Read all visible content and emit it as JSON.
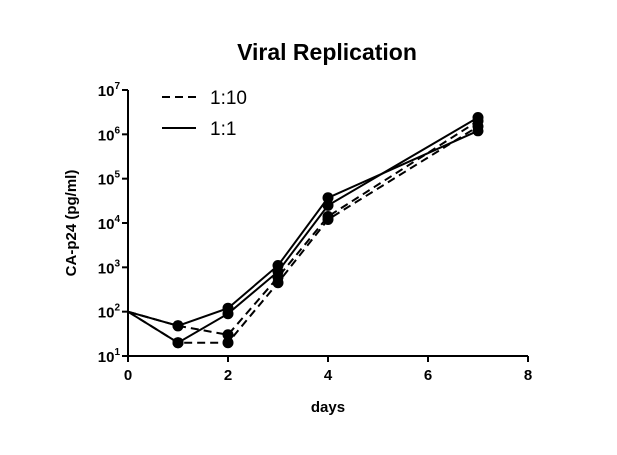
{
  "chart_data": {
    "type": "line",
    "title": "Viral Replication",
    "xlabel": "days",
    "ylabel": "CA-p24 (pg/ml)",
    "xlim": [
      0,
      8
    ],
    "ylim": [
      10,
      10000000
    ],
    "yscale": "log",
    "grid": false,
    "legend_position": "top-left",
    "x_ticks": [
      "0",
      "2",
      "4",
      "6",
      "8"
    ],
    "y_ticks": [
      {
        "base": "10",
        "exp": "1"
      },
      {
        "base": "10",
        "exp": "2"
      },
      {
        "base": "10",
        "exp": "3"
      },
      {
        "base": "10",
        "exp": "4"
      },
      {
        "base": "10",
        "exp": "5"
      },
      {
        "base": "10",
        "exp": "6"
      },
      {
        "base": "10",
        "exp": "7"
      }
    ],
    "legend": [
      {
        "label": "1:10",
        "style": "dashed"
      },
      {
        "label": "1:1",
        "style": "solid"
      }
    ],
    "series": [
      {
        "name": "1:10",
        "style": "dashed",
        "x": [
          0,
          1,
          2,
          3,
          4,
          7
        ],
        "y": [
          100,
          20,
          20,
          450,
          12000,
          1500000
        ]
      },
      {
        "name": "1:10",
        "style": "dashed",
        "x": [
          0,
          1,
          2,
          3,
          4,
          7
        ],
        "y": [
          100,
          48,
          30,
          600,
          14000,
          2000000
        ]
      },
      {
        "name": "1:1",
        "style": "solid",
        "x": [
          0,
          1,
          2,
          3,
          4,
          7
        ],
        "y": [
          100,
          20,
          90,
          800,
          25000,
          2400000
        ]
      },
      {
        "name": "1:1",
        "style": "solid",
        "x": [
          0,
          1,
          2,
          3,
          4,
          7
        ],
        "y": [
          100,
          48,
          120,
          1100,
          37000,
          1200000
        ]
      }
    ]
  }
}
